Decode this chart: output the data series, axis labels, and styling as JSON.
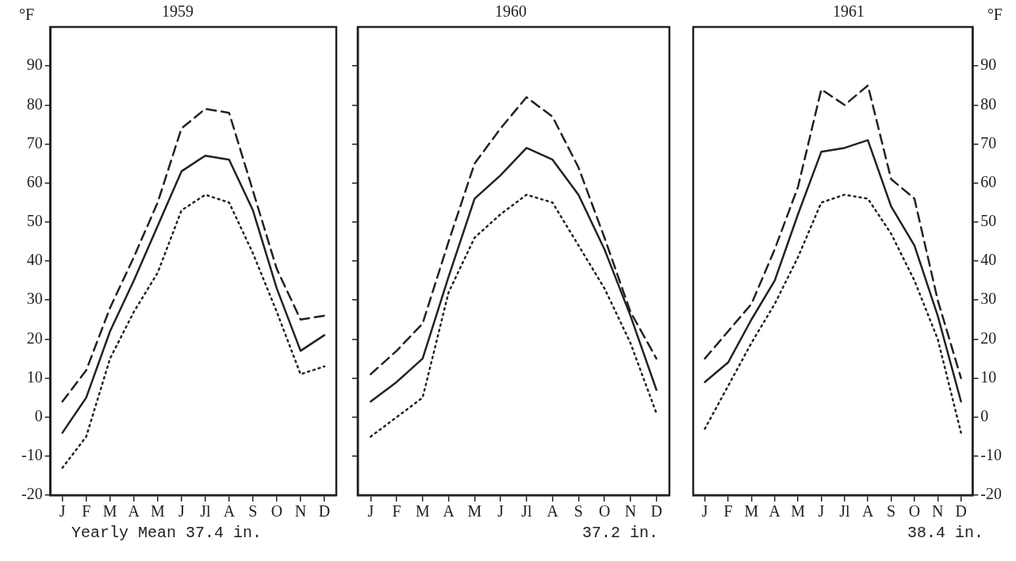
{
  "chart_data": [
    {
      "type": "line",
      "title": "1959",
      "ylabel": "°F",
      "categories": [
        "J",
        "F",
        "M",
        "A",
        "M",
        "J",
        "Jl",
        "A",
        "S",
        "O",
        "N",
        "D"
      ],
      "ylim": [
        -20,
        100
      ],
      "yticks": [
        -20,
        -10,
        0,
        10,
        20,
        30,
        40,
        50,
        60,
        70,
        80,
        90
      ],
      "grid": false,
      "legend": false,
      "annotations": [
        "Yearly Mean 37.4 in."
      ],
      "series": [
        {
          "color": "#222222",
          "line_style": "dashed",
          "values": [
            4,
            12,
            28,
            41,
            55,
            74,
            79,
            78,
            58,
            38,
            25,
            26
          ]
        },
        {
          "color": "#222222",
          "line_style": "solid",
          "values": [
            -4,
            5,
            22,
            35,
            49,
            63,
            67,
            66,
            53,
            33,
            17,
            21
          ]
        },
        {
          "color": "#222222",
          "line_style": "dotted",
          "values": [
            -13,
            -5,
            15,
            27,
            37,
            53,
            57,
            55,
            42,
            27,
            11,
            13
          ]
        }
      ]
    },
    {
      "type": "line",
      "title": "1960",
      "categories": [
        "J",
        "F",
        "M",
        "A",
        "M",
        "J",
        "Jl",
        "A",
        "S",
        "O",
        "N",
        "D"
      ],
      "ylim": [
        -20,
        100
      ],
      "yticks": [
        -10,
        0,
        10,
        20,
        30,
        40,
        50,
        60,
        70,
        80,
        90
      ],
      "tick_labels": "x",
      "grid": false,
      "legend": false,
      "annotations": [
        "37.2 in."
      ],
      "series": [
        {
          "color": "#222222",
          "line_style": "dashed",
          "values": [
            11,
            17,
            24,
            45,
            65,
            74,
            82,
            77,
            64,
            46,
            27,
            15
          ]
        },
        {
          "color": "#222222",
          "line_style": "solid",
          "values": [
            4,
            9,
            15,
            36,
            56,
            62,
            69,
            66,
            57,
            43,
            26,
            7
          ]
        },
        {
          "color": "#222222",
          "line_style": "dotted",
          "values": [
            -5,
            0,
            5,
            32,
            46,
            52,
            57,
            55,
            44,
            33,
            19,
            1
          ]
        }
      ]
    },
    {
      "type": "line",
      "title": "1961",
      "y2label": "°F",
      "categories": [
        "J",
        "F",
        "M",
        "A",
        "M",
        "J",
        "Jl",
        "A",
        "S",
        "O",
        "N",
        "D"
      ],
      "y2lim": [
        -20,
        100
      ],
      "y2ticks": [
        -20,
        -10,
        0,
        10,
        20,
        30,
        40,
        50,
        60,
        70,
        80,
        90
      ],
      "grid": false,
      "legend": false,
      "annotations": [
        "38.4 in."
      ],
      "series": [
        {
          "color": "#222222",
          "line_style": "dashed",
          "axis": "y2",
          "values": [
            15,
            22,
            29,
            43,
            59,
            84,
            80,
            85,
            61,
            56,
            30,
            10
          ]
        },
        {
          "color": "#222222",
          "line_style": "solid",
          "axis": "y2",
          "values": [
            9,
            14,
            25,
            35,
            52,
            68,
            69,
            71,
            54,
            44,
            26,
            4
          ]
        },
        {
          "color": "#222222",
          "line_style": "dotted",
          "axis": "y2",
          "values": [
            -3,
            8,
            19,
            29,
            41,
            55,
            57,
            56,
            47,
            35,
            20,
            -4
          ]
        }
      ]
    }
  ]
}
